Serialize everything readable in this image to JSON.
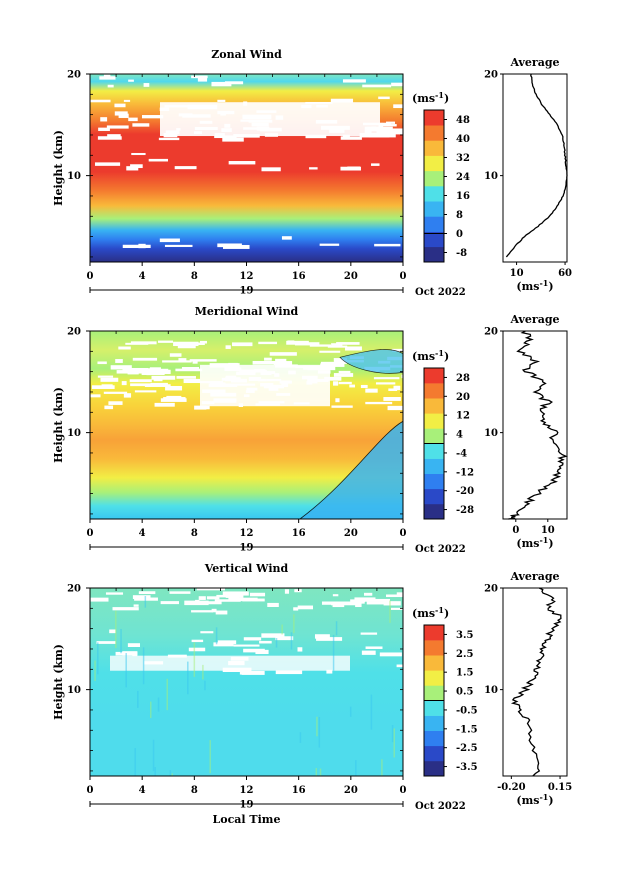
{
  "colors": {
    "background": "#ffffff",
    "axes": "#000000",
    "bar_scale": [
      "#2a2f86",
      "#2a49c8",
      "#2f7ff0",
      "#39b4f2",
      "#4fe0e8",
      "#a8f07a",
      "#f2ee45",
      "#f9b93a",
      "#f47a2f",
      "#ec3b2d"
    ]
  },
  "common": {
    "height_label": "Height (km)",
    "local_time_label": "Local Time",
    "date_label": "Oct 2022",
    "day_label": "19",
    "units_label": "(ms",
    "units_sup": "-1",
    "units_close": ")",
    "average_title": "Average"
  },
  "chart_data": [
    {
      "id": "zonal",
      "type": "heatmap",
      "title": "Zonal Wind",
      "xlabel": "",
      "ylabel": "Height (km)",
      "x_ticks": [
        "0",
        "4",
        "8",
        "12",
        "16",
        "20",
        "0"
      ],
      "x_range": [
        0,
        24
      ],
      "y_ticks": [
        "10",
        "20"
      ],
      "y_range": [
        1.5,
        20
      ],
      "colorbar": {
        "ticks": [
          "48",
          "40",
          "32",
          "24",
          "16",
          "8",
          "0",
          "-8"
        ],
        "range": [
          -12,
          52
        ]
      },
      "profile": {
        "title": "Average",
        "xlabel": "(ms-1)",
        "x_ticks": [
          "10",
          "60"
        ],
        "x_range": [
          -4,
          62
        ],
        "y_ticks": [
          "10",
          "20"
        ],
        "heights": [
          2,
          3,
          4,
          5,
          6,
          7,
          8,
          9,
          10,
          11,
          12,
          13,
          14,
          15,
          16,
          17,
          18,
          19,
          20
        ],
        "values": [
          0,
          8,
          18,
          32,
          44,
          52,
          58,
          61,
          62,
          61,
          60,
          59,
          57,
          52,
          44,
          36,
          30,
          26,
          25
        ]
      }
    },
    {
      "id": "meridional",
      "type": "heatmap",
      "title": "Meridional Wind",
      "xlabel": "",
      "ylabel": "Height (km)",
      "x_ticks": [
        "0",
        "4",
        "8",
        "12",
        "16",
        "20",
        "0"
      ],
      "x_range": [
        0,
        24
      ],
      "y_ticks": [
        "10",
        "20"
      ],
      "y_range": [
        1.5,
        20
      ],
      "colorbar": {
        "ticks": [
          "28",
          "20",
          "12",
          "4",
          "-4",
          "-12",
          "-20",
          "-28"
        ],
        "range": [
          -32,
          32
        ]
      },
      "profile": {
        "title": "Average",
        "xlabel": "(ms-1)",
        "x_ticks": [
          "0",
          "10"
        ],
        "x_range": [
          -4,
          16
        ],
        "y_ticks": [
          "10",
          "20"
        ],
        "heights": [
          1.5,
          2,
          3,
          4,
          5,
          6,
          7,
          8,
          9,
          10,
          11,
          12,
          13,
          14,
          15,
          16,
          17,
          18,
          19,
          20
        ],
        "values": [
          -1,
          0,
          3,
          7,
          11,
          13,
          14,
          15,
          11,
          12,
          9,
          8,
          10,
          6,
          9,
          3,
          6,
          1,
          4,
          3
        ]
      }
    },
    {
      "id": "vertical",
      "type": "heatmap",
      "title": "Vertical Wind",
      "xlabel": "Local Time",
      "ylabel": "Height (km)",
      "x_ticks": [
        "0",
        "4",
        "8",
        "12",
        "16",
        "20",
        "0"
      ],
      "x_range": [
        0,
        24
      ],
      "y_ticks": [
        "10",
        "20"
      ],
      "y_range": [
        1.5,
        20
      ],
      "colorbar": {
        "ticks": [
          "3.5",
          "2.5",
          "1.5",
          "0.5",
          "-0.5",
          "-1.5",
          "-2.5",
          "-3.5"
        ],
        "range": [
          -4,
          4
        ]
      },
      "profile": {
        "title": "Average",
        "xlabel": "(ms-1)",
        "x_ticks": [
          "-0.20",
          "0.15"
        ],
        "x_range": [
          -0.26,
          0.2
        ],
        "y_ticks": [
          "10",
          "20"
        ],
        "heights": [
          1.5,
          3,
          5,
          7,
          8,
          9,
          10,
          11,
          12,
          13,
          14,
          15,
          16,
          17,
          18,
          19,
          20
        ],
        "values": [
          -0.02,
          -0.03,
          -0.05,
          -0.08,
          -0.14,
          -0.18,
          -0.1,
          -0.05,
          -0.02,
          0.0,
          0.03,
          0.06,
          0.1,
          0.17,
          0.06,
          0.1,
          0.0
        ]
      }
    }
  ]
}
